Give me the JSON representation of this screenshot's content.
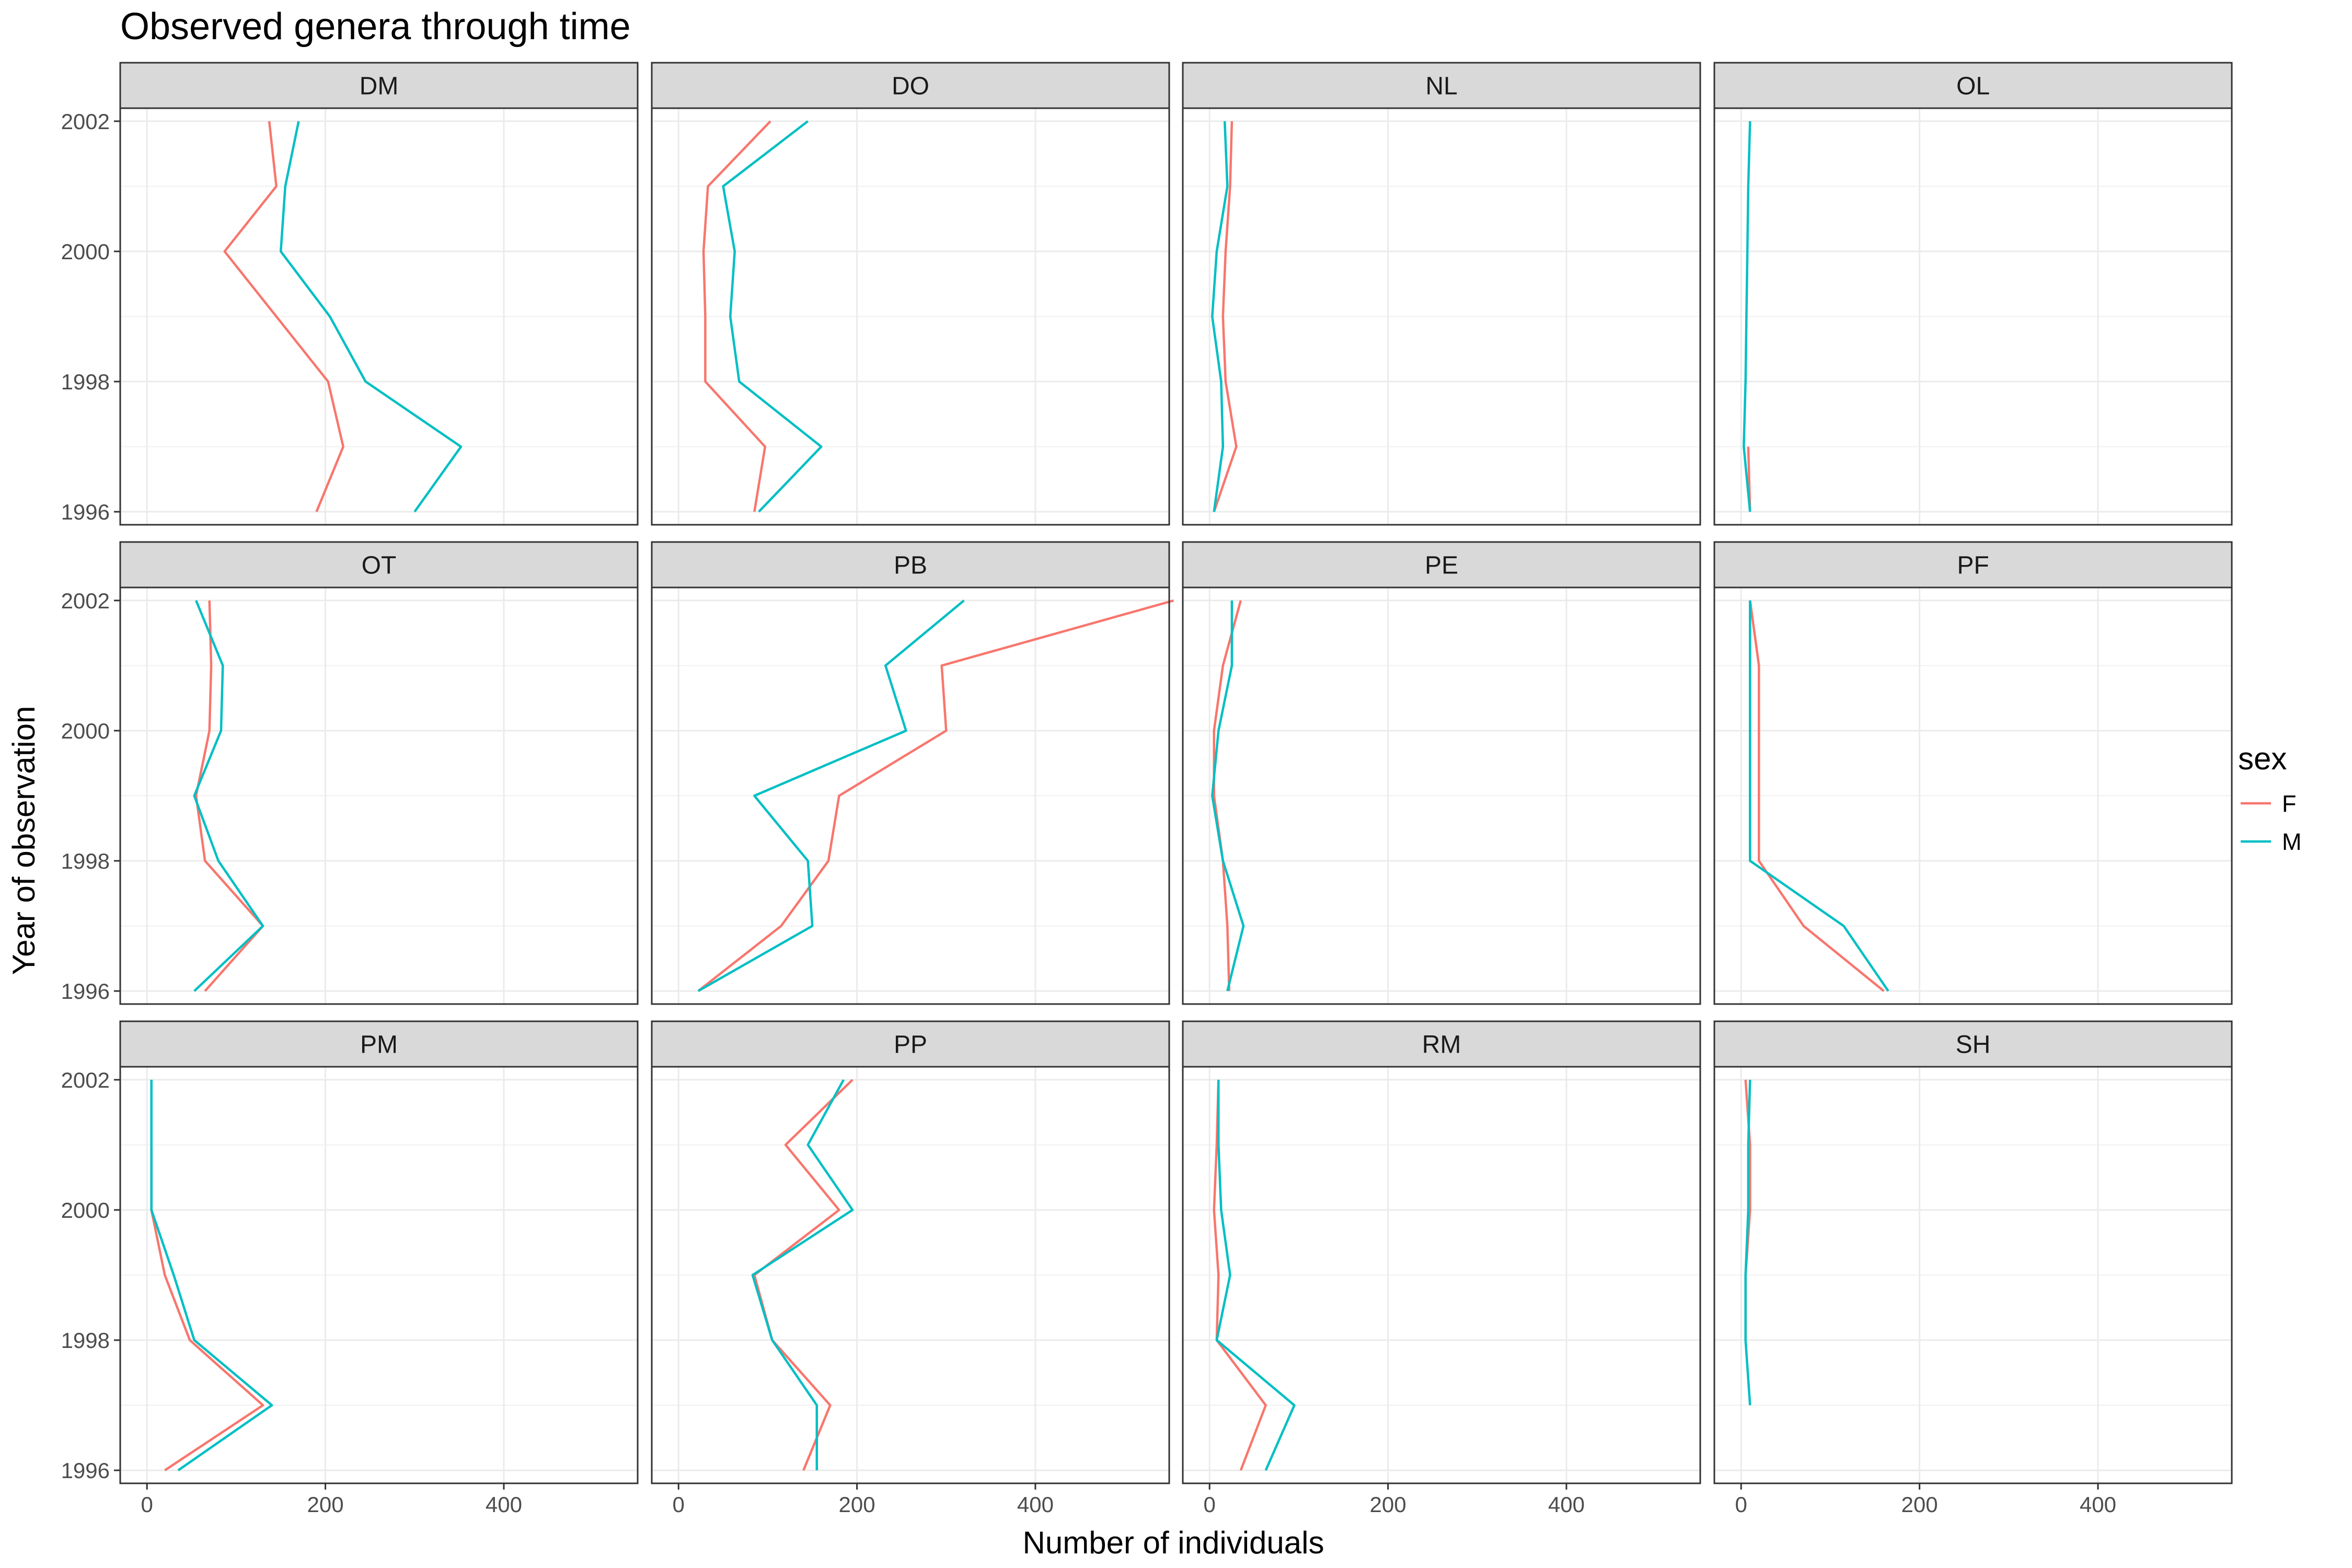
{
  "chart_data": {
    "type": "line",
    "title": "Observed genera through time",
    "xlabel": "Number of individuals",
    "ylabel": "Year of observation",
    "xlim": [
      -30,
      550
    ],
    "ylim": [
      1995.8,
      2002.2
    ],
    "xticks": [
      0,
      200,
      400
    ],
    "yticks": [
      1996,
      1998,
      2000,
      2002
    ],
    "grid": true,
    "legend": {
      "title": "sex",
      "position": "right",
      "entries": [
        {
          "name": "F",
          "color": "#F8766D"
        },
        {
          "name": "M",
          "color": "#00BFC4"
        }
      ]
    },
    "facets": [
      {
        "name": "DM",
        "series": [
          {
            "name": "F",
            "years": [
              1996,
              1997,
              1998,
              1999,
              2000,
              2001,
              2002
            ],
            "values": [
              190,
              220,
              203,
              145,
              87,
              145,
              137
            ]
          },
          {
            "name": "M",
            "years": [
              1996,
              1997,
              1998,
              1999,
              2000,
              2001,
              2002
            ],
            "values": [
              300,
              352,
              245,
              205,
              150,
              155,
              170
            ]
          }
        ]
      },
      {
        "name": "DO",
        "series": [
          {
            "name": "F",
            "years": [
              1996,
              1997,
              1998,
              1999,
              2000,
              2001,
              2002
            ],
            "values": [
              85,
              97,
              30,
              30,
              28,
              33,
              103
            ]
          },
          {
            "name": "M",
            "years": [
              1996,
              1997,
              1998,
              1999,
              2000,
              2001,
              2002
            ],
            "values": [
              90,
              160,
              68,
              58,
              63,
              50,
              145
            ]
          }
        ]
      },
      {
        "name": "NL",
        "series": [
          {
            "name": "F",
            "years": [
              1996,
              1997,
              1998,
              1999,
              2000,
              2001,
              2002
            ],
            "values": [
              5,
              30,
              18,
              15,
              18,
              23,
              25
            ]
          },
          {
            "name": "M",
            "years": [
              1996,
              1997,
              1998,
              1999,
              2000,
              2001,
              2002
            ],
            "values": [
              5,
              15,
              13,
              3,
              8,
              20,
              17
            ]
          }
        ]
      },
      {
        "name": "OL",
        "series": [
          {
            "name": "F",
            "years": [
              1996,
              1997
            ],
            "values": [
              10,
              8
            ]
          },
          {
            "name": "M",
            "years": [
              1996,
              1997,
              1998,
              1999,
              2000,
              2001,
              2002
            ],
            "values": [
              10,
              3,
              5,
              6,
              7,
              8,
              10
            ]
          }
        ]
      },
      {
        "name": "OT",
        "series": [
          {
            "name": "F",
            "years": [
              1996,
              1997,
              1998,
              1999,
              2000,
              2001,
              2002
            ],
            "values": [
              65,
              130,
              65,
              55,
              70,
              72,
              70
            ]
          },
          {
            "name": "M",
            "years": [
              1996,
              1997,
              1998,
              1999,
              2000,
              2001,
              2002
            ],
            "values": [
              53,
              130,
              80,
              53,
              83,
              85,
              55
            ]
          }
        ]
      },
      {
        "name": "PB",
        "series": [
          {
            "name": "F",
            "years": [
              1996,
              1997,
              1998,
              1999,
              2000,
              2001,
              2002
            ],
            "values": [
              22,
              115,
              168,
              180,
              300,
              295,
              555
            ]
          },
          {
            "name": "M",
            "years": [
              1996,
              1997,
              1998,
              1999,
              2000,
              2001,
              2002
            ],
            "values": [
              22,
              150,
              145,
              85,
              255,
              232,
              320
            ]
          }
        ]
      },
      {
        "name": "PE",
        "series": [
          {
            "name": "F",
            "years": [
              1996,
              1997,
              1998,
              1999,
              2000,
              2001,
              2002
            ],
            "values": [
              22,
              20,
              15,
              5,
              5,
              15,
              35
            ]
          },
          {
            "name": "M",
            "years": [
              1996,
              1997,
              1998,
              1999,
              2000,
              2001,
              2002
            ],
            "values": [
              20,
              38,
              15,
              3,
              10,
              25,
              25
            ]
          }
        ]
      },
      {
        "name": "PF",
        "series": [
          {
            "name": "F",
            "years": [
              1996,
              1997,
              1998,
              1999,
              2000,
              2001,
              2002
            ],
            "values": [
              160,
              70,
              20,
              20,
              20,
              20,
              10
            ]
          },
          {
            "name": "M",
            "years": [
              1996,
              1997,
              1998,
              1999,
              2000,
              2001,
              2002
            ],
            "values": [
              165,
              115,
              10,
              10,
              10,
              10,
              10
            ]
          }
        ]
      },
      {
        "name": "PM",
        "series": [
          {
            "name": "F",
            "years": [
              1996,
              1997,
              1998,
              1999,
              2000,
              2001
            ],
            "values": [
              20,
              130,
              48,
              20,
              5,
              5
            ]
          },
          {
            "name": "M",
            "years": [
              1996,
              1997,
              1998,
              1999,
              2000,
              2001,
              2002
            ],
            "values": [
              35,
              140,
              53,
              30,
              5,
              5,
              5
            ]
          }
        ]
      },
      {
        "name": "PP",
        "series": [
          {
            "name": "F",
            "years": [
              1996,
              1997,
              1998,
              1999,
              2000,
              2001,
              2002
            ],
            "values": [
              140,
              170,
              105,
              85,
              180,
              120,
              195
            ]
          },
          {
            "name": "M",
            "years": [
              1996,
              1997,
              1998,
              1999,
              2000,
              2001,
              2002
            ],
            "values": [
              155,
              155,
              105,
              83,
              195,
              145,
              185
            ]
          }
        ]
      },
      {
        "name": "RM",
        "series": [
          {
            "name": "F",
            "years": [
              1996,
              1997,
              1998,
              1999,
              2000,
              2001,
              2002
            ],
            "values": [
              35,
              63,
              8,
              10,
              5,
              8,
              10
            ]
          },
          {
            "name": "M",
            "years": [
              1996,
              1997,
              1998,
              1999,
              2000,
              2001,
              2002
            ],
            "values": [
              63,
              95,
              8,
              23,
              13,
              10,
              10
            ]
          }
        ]
      },
      {
        "name": "SH",
        "series": [
          {
            "name": "F",
            "years": [
              1998,
              1999,
              2000,
              2001,
              2002
            ],
            "values": [
              5,
              5,
              10,
              10,
              5
            ]
          },
          {
            "name": "M",
            "years": [
              1997,
              1998,
              1999,
              2000,
              2001,
              2002
            ],
            "values": [
              10,
              5,
              5,
              8,
              8,
              10
            ]
          }
        ]
      }
    ]
  }
}
